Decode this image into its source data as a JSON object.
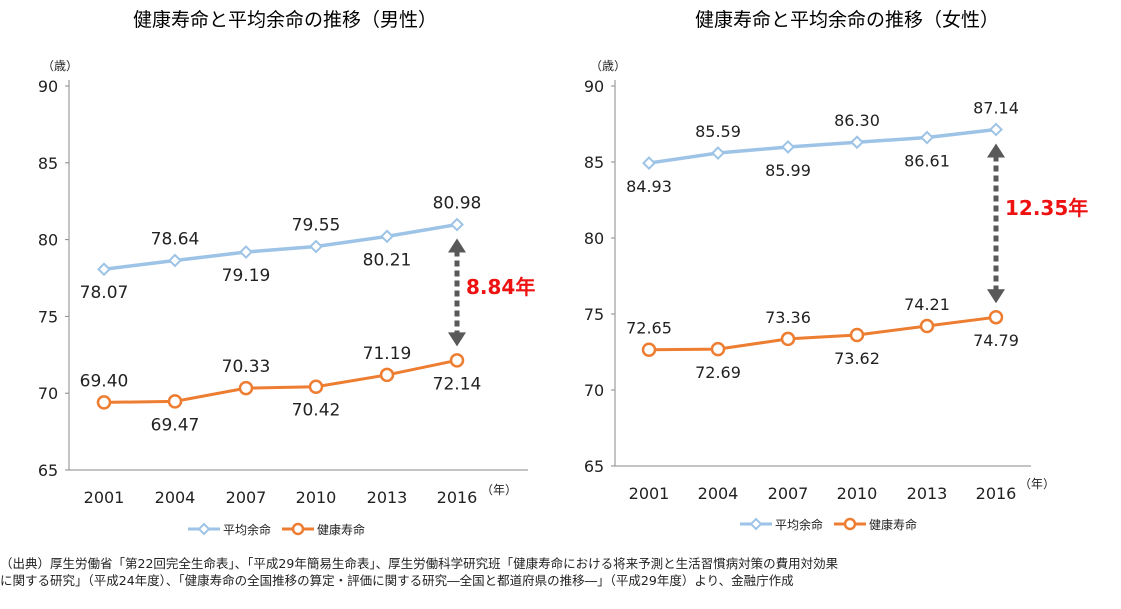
{
  "chart_data": [
    {
      "type": "line",
      "title": "健康寿命と平均余命の推移（男性）",
      "ylabel": "（歳）",
      "xlabel": "（年）",
      "ylim": [
        65,
        90
      ],
      "yticks": [
        65,
        70,
        75,
        80,
        85,
        90
      ],
      "categories": [
        "2001",
        "2004",
        "2007",
        "2010",
        "2013",
        "2016"
      ],
      "series": [
        {
          "name": "平均余命",
          "values": [
            78.07,
            78.64,
            79.19,
            79.55,
            80.21,
            80.98
          ],
          "labels": [
            "78.07",
            "78.64",
            "79.19",
            "79.55",
            "80.21",
            "80.98"
          ],
          "label_pos": [
            "below",
            "above",
            "below",
            "above",
            "below",
            "above"
          ]
        },
        {
          "name": "健康寿命",
          "values": [
            69.4,
            69.47,
            70.33,
            70.42,
            71.19,
            72.14
          ],
          "labels": [
            "69.40",
            "69.47",
            "70.33",
            "70.42",
            "71.19",
            "72.14"
          ],
          "label_pos": [
            "above",
            "below",
            "above",
            "below",
            "above",
            "below"
          ]
        }
      ],
      "gap_label": "8.84年",
      "gap_side": "right"
    },
    {
      "type": "line",
      "title": "健康寿命と平均余命の推移（女性）",
      "ylabel": "（歳）",
      "xlabel": "（年）",
      "ylim": [
        65,
        90
      ],
      "yticks": [
        65,
        70,
        75,
        80,
        85,
        90
      ],
      "categories": [
        "2001",
        "2004",
        "2007",
        "2010",
        "2013",
        "2016"
      ],
      "series": [
        {
          "name": "平均余命",
          "values": [
            84.93,
            85.59,
            85.99,
            86.3,
            86.61,
            87.14
          ],
          "labels": [
            "84.93",
            "85.59",
            "85.99",
            "86.30",
            "86.61",
            "87.14"
          ],
          "label_pos": [
            "below",
            "above",
            "below",
            "above",
            "below",
            "above"
          ]
        },
        {
          "name": "健康寿命",
          "values": [
            72.65,
            72.69,
            73.36,
            73.62,
            74.21,
            74.79
          ],
          "labels": [
            "72.65",
            "72.69",
            "73.36",
            "73.62",
            "74.21",
            "74.79"
          ],
          "label_pos": [
            "above",
            "below",
            "above",
            "below",
            "above",
            "below"
          ]
        }
      ],
      "gap_label": "12.35年",
      "gap_side": "right"
    }
  ],
  "legend": [
    "平均余命",
    "健康寿命"
  ],
  "colors": {
    "life_expectancy": "#9dc3e6",
    "healthy_life": "#ed7d31",
    "gap_label": "#ee1111",
    "arrow": "#595959"
  },
  "source": [
    "（出典）厚生労働省「第22回完全生命表」、「平成29年簡易生命表」、厚生労働科学研究班「健康寿命における将来予測と生活習慣病対策の費用対効果",
    "に関する研究」（平成24年度）、「健康寿命の全国推移の算定・評価に関する研究―全国と都道府県の推移―」（平成29年度）より、金融庁作成"
  ]
}
